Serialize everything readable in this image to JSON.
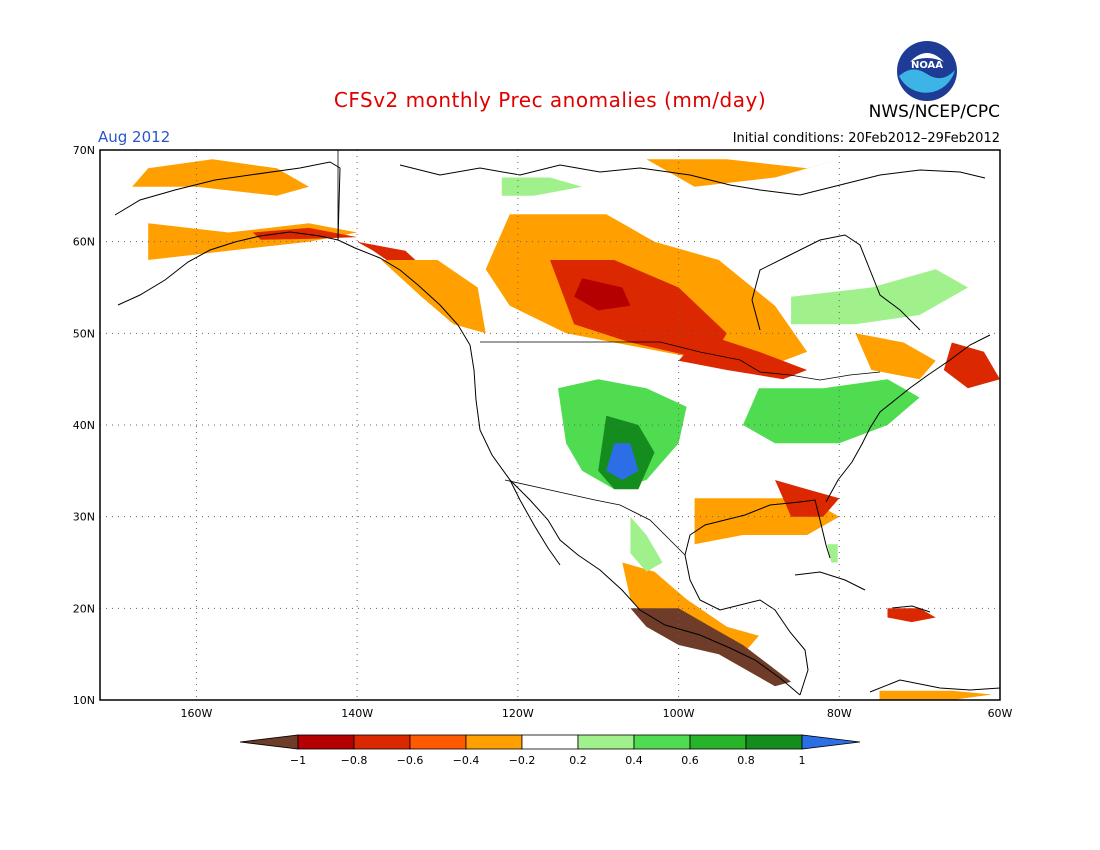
{
  "header": {
    "title": "CFSv2 monthly Prec anomalies (mm/day)",
    "agency": "NWS/NCEP/CPC",
    "logo_text": "NOAA",
    "period": "Aug 2012",
    "initial_conditions": "Initial conditions: 20Feb2012–29Feb2012"
  },
  "colors": {
    "title": "#e00000",
    "period": "#2a55cc",
    "land_outline": "#000000",
    "gridline": "#666666"
  },
  "map": {
    "lon_range": [
      -172,
      -60
    ],
    "lat_range": [
      10,
      70
    ],
    "lat_labels": [
      "70N",
      "60N",
      "50N",
      "40N",
      "30N",
      "20N",
      "10N"
    ],
    "lon_labels": [
      "160W",
      "140W",
      "120W",
      "100W",
      "80W",
      "60W"
    ],
    "regions": [
      {
        "name": "dry-alaska-north",
        "cls": "o",
        "pts": [
          [
            -166,
            68
          ],
          [
            -158,
            69
          ],
          [
            -150,
            68
          ],
          [
            -146,
            66
          ],
          [
            -150,
            65
          ],
          [
            -160,
            66
          ],
          [
            -168,
            66
          ]
        ]
      },
      {
        "name": "dry-alaska-south",
        "cls": "o",
        "pts": [
          [
            -166,
            62
          ],
          [
            -156,
            61
          ],
          [
            -146,
            62
          ],
          [
            -140,
            61
          ],
          [
            -146,
            60
          ],
          [
            -156,
            59
          ],
          [
            -166,
            58
          ]
        ]
      },
      {
        "name": "dry-alaska-coast",
        "cls": "r",
        "pts": [
          [
            -153,
            61
          ],
          [
            -146,
            61.5
          ],
          [
            -140,
            60.5
          ],
          [
            -146,
            60.3
          ],
          [
            -152,
            60.2
          ]
        ]
      },
      {
        "name": "dry-bc-coast",
        "cls": "r",
        "pts": [
          [
            -140,
            60
          ],
          [
            -134,
            59
          ],
          [
            -129,
            55
          ],
          [
            -126,
            51
          ],
          [
            -128,
            52
          ],
          [
            -133,
            56
          ],
          [
            -138,
            59
          ]
        ]
      },
      {
        "name": "dry-bc-interior",
        "cls": "o",
        "pts": [
          [
            -137,
            58
          ],
          [
            -130,
            58
          ],
          [
            -125,
            55
          ],
          [
            -124,
            50
          ],
          [
            -128,
            51
          ],
          [
            -132,
            54
          ]
        ]
      },
      {
        "name": "dry-canada-prairie",
        "cls": "o",
        "pts": [
          [
            -121,
            63
          ],
          [
            -109,
            63
          ],
          [
            -103,
            60
          ],
          [
            -95,
            58
          ],
          [
            -88,
            53
          ],
          [
            -84,
            48
          ],
          [
            -90,
            46
          ],
          [
            -102,
            48
          ],
          [
            -114,
            50
          ],
          [
            -121,
            53
          ],
          [
            -124,
            57
          ]
        ]
      },
      {
        "name": "dry-canada-core",
        "cls": "r",
        "pts": [
          [
            -116,
            58
          ],
          [
            -108,
            58
          ],
          [
            -100,
            55
          ],
          [
            -94,
            50
          ],
          [
            -96,
            47
          ],
          [
            -106,
            49
          ],
          [
            -113,
            51
          ]
        ]
      },
      {
        "name": "dry-canada-darkcore",
        "cls": "dr",
        "pts": [
          [
            -112,
            56
          ],
          [
            -107,
            55
          ],
          [
            -106,
            53
          ],
          [
            -110,
            52.5
          ],
          [
            -113,
            54
          ]
        ]
      },
      {
        "name": "dry-great-lakes",
        "cls": "r",
        "pts": [
          [
            -97,
            50
          ],
          [
            -90,
            48
          ],
          [
            -84,
            46
          ],
          [
            -87,
            45
          ],
          [
            -94,
            46
          ],
          [
            -100,
            47
          ]
        ]
      },
      {
        "name": "dry-arctic-north",
        "cls": "o",
        "pts": [
          [
            -104,
            69
          ],
          [
            -94,
            69
          ],
          [
            -84,
            68
          ],
          [
            -80,
            69
          ],
          [
            -88,
            67
          ],
          [
            -98,
            66
          ]
        ]
      },
      {
        "name": "dry-quebec",
        "cls": "o",
        "pts": [
          [
            -78,
            50
          ],
          [
            -72,
            49
          ],
          [
            -68,
            47
          ],
          [
            -70,
            45
          ],
          [
            -76,
            46
          ]
        ]
      },
      {
        "name": "dry-maritimes",
        "cls": "r",
        "pts": [
          [
            -66,
            49
          ],
          [
            -62,
            48
          ],
          [
            -60,
            45
          ],
          [
            -64,
            44
          ],
          [
            -67,
            46
          ]
        ]
      },
      {
        "name": "dry-gulf-coast",
        "cls": "o",
        "pts": [
          [
            -98,
            32
          ],
          [
            -90,
            32
          ],
          [
            -84,
            32
          ],
          [
            -80,
            30
          ],
          [
            -84,
            28
          ],
          [
            -92,
            28
          ],
          [
            -98,
            27
          ]
        ]
      },
      {
        "name": "dry-southeast",
        "cls": "r",
        "pts": [
          [
            -88,
            34
          ],
          [
            -84,
            33
          ],
          [
            -80,
            32
          ],
          [
            -82,
            30
          ],
          [
            -86,
            30
          ]
        ]
      },
      {
        "name": "dry-mexico",
        "cls": "o",
        "pts": [
          [
            -107,
            25
          ],
          [
            -103,
            24
          ],
          [
            -99,
            21
          ],
          [
            -94,
            18
          ],
          [
            -90,
            17
          ],
          [
            -92,
            15
          ],
          [
            -97,
            16
          ],
          [
            -103,
            18
          ],
          [
            -106,
            21
          ]
        ]
      },
      {
        "name": "very-dry-mexico",
        "cls": "b",
        "pts": [
          [
            -106,
            20
          ],
          [
            -100,
            20
          ],
          [
            -96,
            18
          ],
          [
            -92,
            16
          ],
          [
            -89,
            14
          ],
          [
            -86,
            12
          ],
          [
            -88,
            11.5
          ],
          [
            -91,
            13
          ],
          [
            -95,
            15
          ],
          [
            -100,
            16
          ],
          [
            -104,
            18
          ]
        ]
      },
      {
        "name": "dry-caribbean",
        "cls": "r",
        "pts": [
          [
            -74,
            20
          ],
          [
            -70,
            20
          ],
          [
            -68,
            19
          ],
          [
            -71,
            18.5
          ],
          [
            -74,
            19
          ]
        ]
      },
      {
        "name": "dry-south-america",
        "cls": "o",
        "pts": [
          [
            -75,
            11
          ],
          [
            -66,
            11
          ],
          [
            -61,
            10.6
          ],
          [
            -66,
            10
          ],
          [
            -75,
            10
          ]
        ]
      },
      {
        "name": "wet-great-plains",
        "cls": "g",
        "pts": [
          [
            -115,
            44
          ],
          [
            -110,
            45
          ],
          [
            -104,
            44
          ],
          [
            -99,
            42
          ],
          [
            -100,
            38
          ],
          [
            -104,
            34
          ],
          [
            -108,
            33
          ],
          [
            -112,
            35
          ],
          [
            -114,
            38
          ]
        ]
      },
      {
        "name": "wet-plains-core",
        "cls": "gm",
        "pts": [
          [
            -109,
            41
          ],
          [
            -105,
            40
          ],
          [
            -103,
            37
          ],
          [
            -105,
            33
          ],
          [
            -108,
            33
          ],
          [
            -110,
            35
          ]
        ]
      },
      {
        "name": "wet-plains-peak",
        "cls": "bl",
        "pts": [
          [
            -108,
            38
          ],
          [
            -106,
            38
          ],
          [
            -105,
            35
          ],
          [
            -107,
            34
          ],
          [
            -109,
            35
          ]
        ]
      },
      {
        "name": "wet-northeast",
        "cls": "g",
        "pts": [
          [
            -90,
            44
          ],
          [
            -82,
            44
          ],
          [
            -74,
            45
          ],
          [
            -70,
            43
          ],
          [
            -74,
            40
          ],
          [
            -80,
            38
          ],
          [
            -88,
            38
          ],
          [
            -92,
            40
          ]
        ]
      },
      {
        "name": "wet-canada-east",
        "cls": "lg",
        "pts": [
          [
            -86,
            54
          ],
          [
            -76,
            55
          ],
          [
            -68,
            57
          ],
          [
            -64,
            55
          ],
          [
            -70,
            52
          ],
          [
            -78,
            51
          ],
          [
            -86,
            51
          ]
        ]
      },
      {
        "name": "wet-mexico-west",
        "cls": "lg",
        "pts": [
          [
            -106,
            30
          ],
          [
            -104,
            28
          ],
          [
            -102,
            25
          ],
          [
            -104,
            24
          ],
          [
            -106,
            26
          ]
        ]
      },
      {
        "name": "wet-arctic",
        "cls": "lg",
        "pts": [
          [
            -122,
            67
          ],
          [
            -116,
            67
          ],
          [
            -112,
            66
          ],
          [
            -118,
            65
          ],
          [
            -122,
            65
          ]
        ]
      },
      {
        "name": "wet-florida",
        "cls": "lg",
        "pts": [
          [
            -81.5,
            27
          ],
          [
            -80.2,
            27
          ],
          [
            -80.2,
            25
          ],
          [
            -81,
            25
          ]
        ]
      }
    ]
  },
  "colorbar": {
    "labels": [
      "−1",
      "−0.8",
      "−0.6",
      "−0.4",
      "−0.2",
      "0.2",
      "0.4",
      "0.6",
      "0.8",
      "1"
    ],
    "colors": [
      "#6e3c28",
      "#b40000",
      "#dc2800",
      "#ff5a00",
      "#ffa000",
      "#ffffff",
      "#a0f08c",
      "#50dc50",
      "#28b428",
      "#148c1e",
      "#2c6ee6"
    ]
  }
}
